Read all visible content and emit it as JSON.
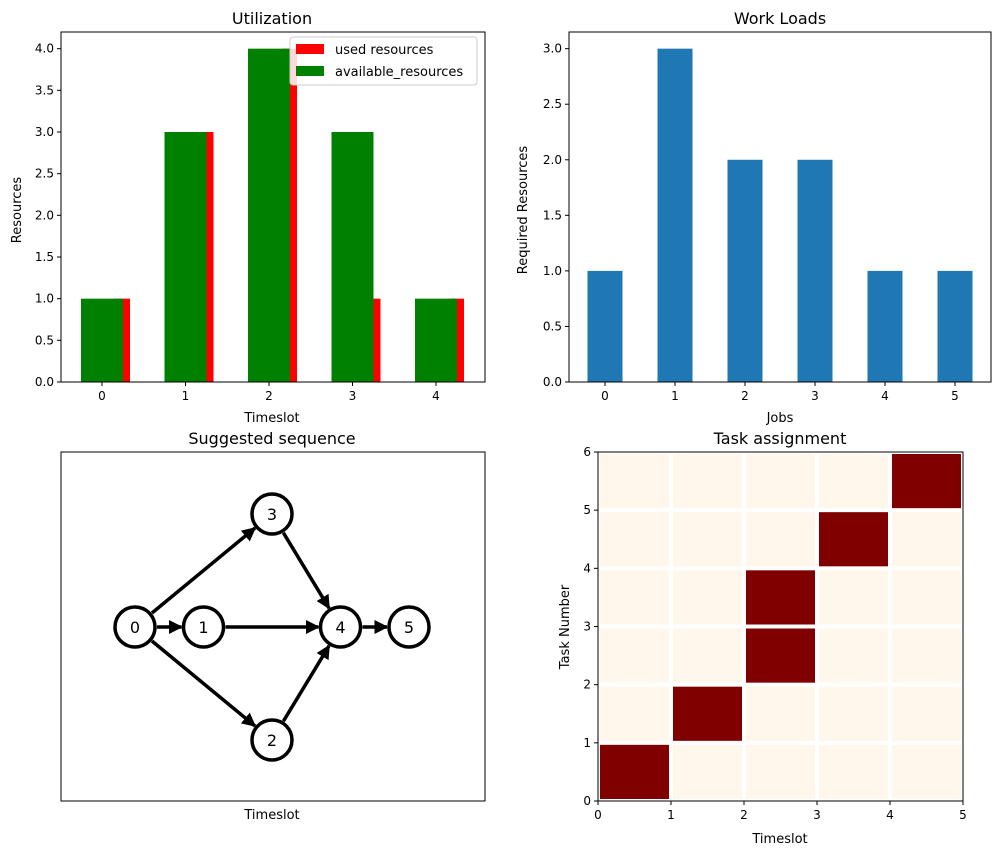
{
  "chart_data": [
    {
      "type": "bar",
      "title": "Utilization",
      "xlabel": "Timeslot",
      "ylabel": "Resources",
      "categories": [
        "0",
        "1",
        "2",
        "3",
        "4"
      ],
      "ylim": [
        0,
        4.2
      ],
      "yticks": [
        "0.0",
        "0.5",
        "1.0",
        "1.5",
        "2.0",
        "2.5",
        "3.0",
        "3.5",
        "4.0"
      ],
      "legend_position": "top-right",
      "series": [
        {
          "name": "used resources",
          "color": "#ff0000",
          "values": [
            1,
            3,
            4,
            1,
            1
          ]
        },
        {
          "name": "available_resources",
          "color": "#008000",
          "values": [
            1,
            3,
            4,
            3,
            1
          ]
        }
      ]
    },
    {
      "type": "bar",
      "title": "Work Loads",
      "xlabel": "Jobs",
      "ylabel": "Required Resources",
      "categories": [
        "0",
        "1",
        "2",
        "3",
        "4",
        "5"
      ],
      "ylim": [
        0,
        3.15
      ],
      "yticks": [
        "0.0",
        "0.5",
        "1.0",
        "1.5",
        "2.0",
        "2.5",
        "3.0"
      ],
      "series": [
        {
          "name": "Required Resources",
          "color": "#1f77b4",
          "values": [
            1,
            3,
            2,
            2,
            1,
            1
          ]
        }
      ]
    },
    {
      "type": "network",
      "title": "Suggested sequence",
      "xlabel": "Timeslot",
      "nodes": [
        {
          "id": "0",
          "slot": 0,
          "lane": 0
        },
        {
          "id": "1",
          "slot": 1,
          "lane": 0
        },
        {
          "id": "2",
          "slot": 2,
          "lane": -1
        },
        {
          "id": "3",
          "slot": 2,
          "lane": 1
        },
        {
          "id": "4",
          "slot": 3,
          "lane": 0
        },
        {
          "id": "5",
          "slot": 4,
          "lane": 0
        }
      ],
      "edges": [
        [
          "0",
          "1"
        ],
        [
          "0",
          "2"
        ],
        [
          "0",
          "3"
        ],
        [
          "1",
          "4"
        ],
        [
          "2",
          "4"
        ],
        [
          "3",
          "4"
        ],
        [
          "4",
          "5"
        ]
      ]
    },
    {
      "type": "heatmap",
      "title": "Task assignment",
      "xlabel": "Timeslot",
      "ylabel": "Task Number",
      "xticks": [
        "0",
        "1",
        "2",
        "3",
        "4",
        "5"
      ],
      "yticks": [
        "0",
        "1",
        "2",
        "3",
        "4",
        "5",
        "6"
      ],
      "colors": {
        "assigned": "#800000",
        "empty": "#fff7ec"
      },
      "assignments": [
        {
          "task": 0,
          "timeslot": 0
        },
        {
          "task": 1,
          "timeslot": 1
        },
        {
          "task": 2,
          "timeslot": 2
        },
        {
          "task": 3,
          "timeslot": 2
        },
        {
          "task": 4,
          "timeslot": 3
        },
        {
          "task": 5,
          "timeslot": 4
        }
      ]
    }
  ]
}
